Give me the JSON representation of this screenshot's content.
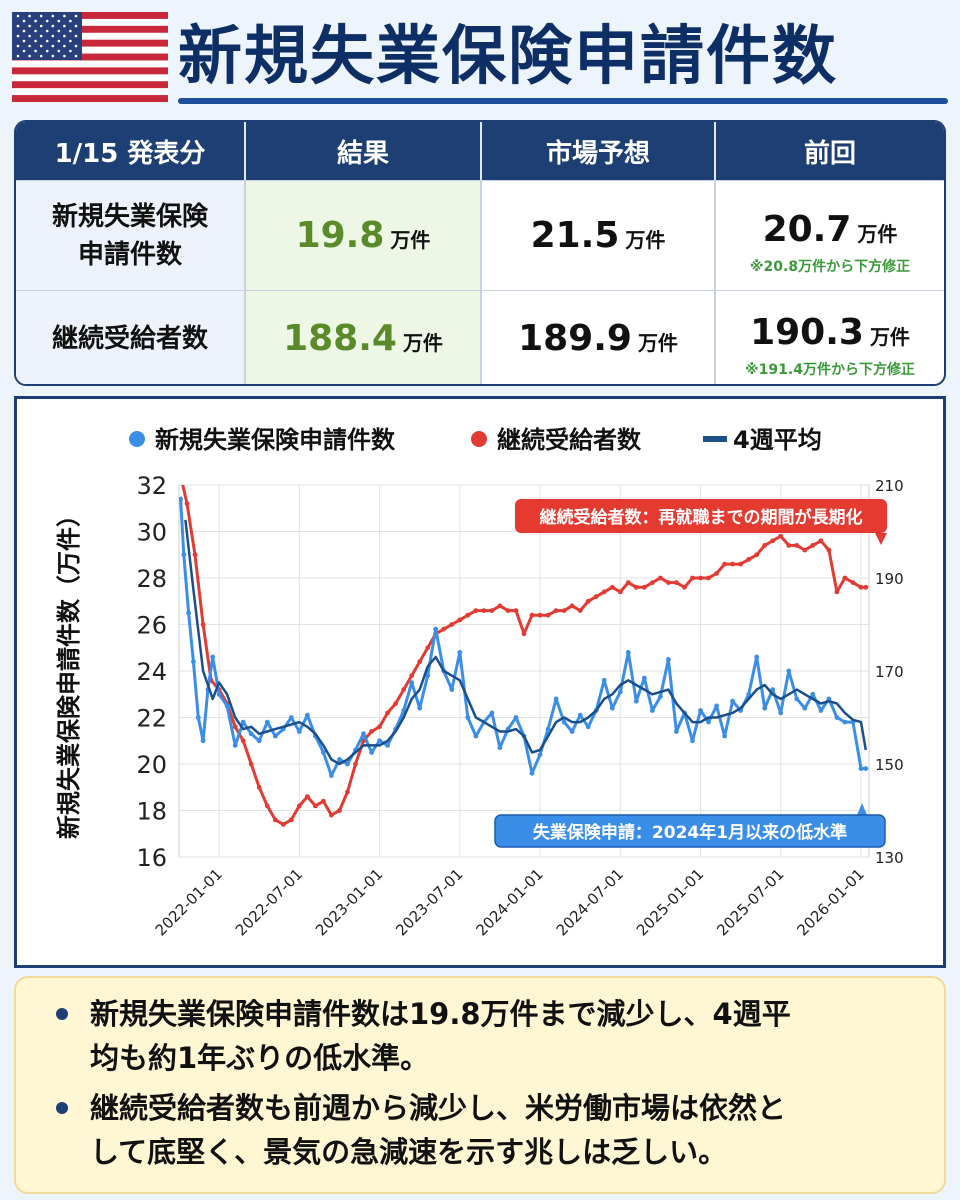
{
  "title": "新規失業保険申請件数",
  "table": {
    "headers": [
      "1/15 発表分",
      "結果",
      "市場予想",
      "前回"
    ],
    "rows": [
      {
        "label_line1": "新規失業保険",
        "label_line2": "申請件数",
        "result": "19.8",
        "forecast": "21.5",
        "previous": "20.7",
        "unit": "万件",
        "note": "※20.8万件から下方修正"
      },
      {
        "label_line1": "継続受給者数",
        "result": "188.4",
        "forecast": "189.9",
        "previous": "190.3",
        "unit": "万件",
        "note": "※191.4万件から下方修正"
      }
    ]
  },
  "chart_data": {
    "type": "line",
    "legend": [
      "新規失業保険申請件数",
      "継続受給者数",
      "4週平均"
    ],
    "colors": {
      "initial": "#3b8ee8",
      "continuing": "#e23b33",
      "avg": "#1a4f8a"
    },
    "ylabel": "新規失業保険申請件数（万件）",
    "ylim": [
      16,
      32
    ],
    "yticks": [
      16,
      18,
      20,
      22,
      24,
      26,
      28,
      30,
      32
    ],
    "y2lim": [
      130,
      210
    ],
    "y2ticks": [
      130,
      150,
      170,
      190,
      210
    ],
    "xticks": [
      "2022-01-01",
      "2022-07-01",
      "2023-01-01",
      "2023-07-01",
      "2024-01-01",
      "2024-07-01",
      "2025-01-01",
      "2025-07-01",
      "2026-01-01"
    ],
    "xrange": [
      2021.75,
      2026.05
    ],
    "annotations": {
      "continuing": "継続受給者数：再就職までの期間が長期化",
      "initial": "失業保険申請：2024年1月以来の低水準"
    },
    "series": [
      {
        "name": "新規失業保険申請件数",
        "axis": "left",
        "x": [
          2021.76,
          2021.78,
          2021.81,
          2021.84,
          2021.87,
          2021.9,
          2021.93,
          2021.96,
          2022.0,
          2022.05,
          2022.1,
          2022.15,
          2022.2,
          2022.25,
          2022.3,
          2022.35,
          2022.4,
          2022.45,
          2022.5,
          2022.55,
          2022.6,
          2022.65,
          2022.7,
          2022.75,
          2022.8,
          2022.85,
          2022.9,
          2022.95,
          2023.0,
          2023.05,
          2023.1,
          2023.15,
          2023.2,
          2023.25,
          2023.3,
          2023.35,
          2023.4,
          2023.45,
          2023.5,
          2023.55,
          2023.6,
          2023.65,
          2023.7,
          2023.75,
          2023.8,
          2023.85,
          2023.9,
          2023.95,
          2024.0,
          2024.05,
          2024.1,
          2024.15,
          2024.2,
          2024.25,
          2024.3,
          2024.35,
          2024.4,
          2024.45,
          2024.5,
          2024.55,
          2024.6,
          2024.65,
          2024.7,
          2024.75,
          2024.8,
          2024.85,
          2024.9,
          2024.95,
          2025.0,
          2025.05,
          2025.1,
          2025.15,
          2025.2,
          2025.25,
          2025.3,
          2025.35,
          2025.4,
          2025.45,
          2025.5,
          2025.55,
          2025.6,
          2025.65,
          2025.7,
          2025.75,
          2025.8,
          2025.85,
          2025.9,
          2025.95,
          2026.0,
          2026.03
        ],
        "values": [
          31.4,
          29.0,
          26.5,
          24.4,
          22.0,
          21.0,
          23.2,
          24.6,
          23.0,
          22.5,
          20.8,
          21.8,
          21.3,
          21.0,
          21.8,
          21.2,
          21.5,
          22.0,
          21.4,
          22.1,
          21.2,
          20.5,
          19.5,
          20.2,
          20.0,
          20.6,
          21.3,
          20.5,
          21.0,
          20.8,
          21.5,
          22.3,
          23.5,
          22.4,
          23.8,
          25.8,
          24.0,
          23.2,
          24.8,
          22.0,
          21.2,
          21.8,
          22.2,
          20.7,
          21.5,
          22.0,
          21.2,
          19.6,
          20.4,
          21.5,
          22.8,
          21.8,
          21.4,
          22.1,
          21.6,
          22.3,
          23.6,
          22.4,
          23.1,
          24.8,
          22.7,
          23.7,
          22.3,
          22.9,
          24.5,
          21.4,
          22.2,
          21.0,
          22.3,
          21.8,
          22.5,
          21.2,
          22.7,
          22.3,
          23.0,
          24.6,
          22.4,
          23.2,
          22.2,
          24.0,
          22.8,
          22.4,
          23.0,
          22.3,
          22.8,
          22.0,
          21.8,
          21.8,
          19.8,
          19.8
        ]
      },
      {
        "name": "継続受給者数",
        "axis": "right",
        "x": [
          2021.76,
          2021.8,
          2021.85,
          2021.9,
          2021.95,
          2022.0,
          2022.05,
          2022.1,
          2022.15,
          2022.2,
          2022.25,
          2022.3,
          2022.35,
          2022.4,
          2022.45,
          2022.5,
          2022.55,
          2022.6,
          2022.65,
          2022.7,
          2022.75,
          2022.8,
          2022.85,
          2022.9,
          2022.95,
          2023.0,
          2023.05,
          2023.1,
          2023.15,
          2023.2,
          2023.25,
          2023.3,
          2023.35,
          2023.4,
          2023.45,
          2023.5,
          2023.55,
          2023.6,
          2023.65,
          2023.7,
          2023.75,
          2023.8,
          2023.85,
          2023.9,
          2023.95,
          2024.0,
          2024.05,
          2024.1,
          2024.15,
          2024.2,
          2024.25,
          2024.3,
          2024.35,
          2024.4,
          2024.45,
          2024.5,
          2024.55,
          2024.6,
          2024.65,
          2024.7,
          2024.75,
          2024.8,
          2024.85,
          2024.9,
          2024.95,
          2025.0,
          2025.05,
          2025.1,
          2025.15,
          2025.2,
          2025.25,
          2025.3,
          2025.35,
          2025.4,
          2025.45,
          2025.5,
          2025.55,
          2025.6,
          2025.65,
          2025.7,
          2025.75,
          2025.8,
          2025.85,
          2025.9,
          2025.95,
          2026.0,
          2026.03
        ],
        "values": [
          212,
          206,
          195,
          180,
          168,
          166,
          163,
          158,
          155,
          150,
          145,
          141,
          138,
          137,
          138,
          141,
          143,
          141,
          142,
          139,
          140,
          144,
          150,
          155,
          157,
          158,
          161,
          163,
          166,
          169,
          172,
          175,
          178,
          179,
          180,
          181,
          182,
          183,
          183,
          183,
          184,
          183,
          183,
          178,
          182,
          182,
          182,
          183,
          183,
          184,
          183,
          185,
          186,
          187,
          188,
          187,
          189,
          188,
          188,
          189,
          190,
          189,
          189,
          188,
          190,
          190,
          190,
          191,
          193,
          193,
          193,
          194,
          195,
          197,
          198,
          199,
          197,
          197,
          196,
          197,
          198,
          196,
          187,
          190,
          189,
          188,
          188
        ]
      },
      {
        "name": "4週平均",
        "axis": "left",
        "x": [
          2021.79,
          2021.84,
          2021.9,
          2021.96,
          2022.0,
          2022.05,
          2022.1,
          2022.15,
          2022.2,
          2022.25,
          2022.3,
          2022.35,
          2022.4,
          2022.45,
          2022.5,
          2022.55,
          2022.6,
          2022.65,
          2022.7,
          2022.75,
          2022.8,
          2022.85,
          2022.9,
          2022.95,
          2023.0,
          2023.05,
          2023.1,
          2023.15,
          2023.2,
          2023.25,
          2023.3,
          2023.35,
          2023.4,
          2023.45,
          2023.5,
          2023.55,
          2023.6,
          2023.65,
          2023.7,
          2023.75,
          2023.8,
          2023.85,
          2023.9,
          2023.95,
          2024.0,
          2024.05,
          2024.1,
          2024.15,
          2024.2,
          2024.25,
          2024.3,
          2024.35,
          2024.4,
          2024.45,
          2024.5,
          2024.55,
          2024.6,
          2024.65,
          2024.7,
          2024.75,
          2024.8,
          2024.85,
          2024.9,
          2024.95,
          2025.0,
          2025.05,
          2025.1,
          2025.15,
          2025.2,
          2025.25,
          2025.3,
          2025.35,
          2025.4,
          2025.45,
          2025.5,
          2025.55,
          2025.6,
          2025.65,
          2025.7,
          2025.75,
          2025.8,
          2025.85,
          2025.9,
          2025.95,
          2026.0,
          2026.03
        ],
        "values": [
          30.5,
          27.5,
          24.0,
          22.8,
          23.5,
          23.0,
          22.0,
          21.5,
          21.6,
          21.3,
          21.4,
          21.5,
          21.6,
          21.7,
          21.8,
          21.6,
          21.3,
          20.8,
          20.2,
          20.0,
          20.2,
          20.5,
          20.8,
          20.8,
          20.8,
          21.0,
          21.4,
          22.0,
          22.8,
          23.2,
          24.2,
          24.6,
          24.0,
          23.8,
          23.6,
          22.8,
          22.0,
          21.8,
          21.6,
          21.4,
          21.4,
          21.5,
          21.2,
          20.5,
          20.6,
          21.2,
          21.8,
          22.0,
          21.8,
          21.8,
          22.0,
          22.3,
          22.8,
          23.0,
          23.4,
          23.6,
          23.4,
          23.2,
          23.0,
          23.1,
          23.2,
          22.6,
          22.2,
          21.8,
          21.8,
          22.0,
          22.0,
          22.1,
          22.2,
          22.4,
          22.8,
          23.2,
          23.4,
          23.0,
          22.8,
          23.0,
          23.2,
          23.0,
          22.8,
          22.6,
          22.7,
          22.6,
          22.2,
          21.9,
          21.8,
          20.6
        ]
      }
    ]
  },
  "summary": [
    {
      "line1": "新規失業保険申請件数は19.8万件まで減少し、4週平",
      "line2": "均も約1年ぶりの低水準。"
    },
    {
      "line1": "継続受給者数も前週から減少し、米労働市場は依然と",
      "line2": "して底堅く、景気の急減速を示す兆しは乏しい。"
    }
  ]
}
